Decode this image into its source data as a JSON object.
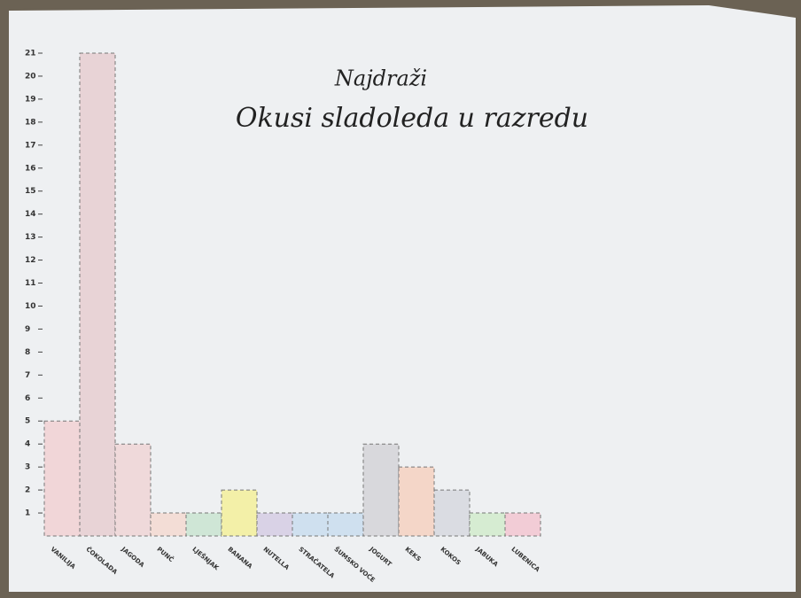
{
  "chart_data": {
    "type": "bar",
    "title": "Najdraži",
    "subtitle": "Okusi sladoleda u razredu",
    "categories": [
      "VANILIJA",
      "ČOKOLADA",
      "JAGODA",
      "PUNČ",
      "LJEŠNJAK",
      "BANANA",
      "NUTELLA",
      "STRAČATELA",
      "ŠUMSKO VOĆE",
      "JOGURT",
      "KEKS",
      "KOKOS",
      "JABUKA",
      "LUBENICA"
    ],
    "values": [
      5,
      21,
      4,
      1,
      1,
      2,
      1,
      1,
      1,
      4,
      3,
      2,
      1,
      1
    ],
    "colors": [
      "#f1d6d8",
      "#e8d3d6",
      "#efd9da",
      "#f3ddd6",
      "#cfe6d6",
      "#f3f0a8",
      "#d9d2e6",
      "#cfe0ef",
      "#cfe0ef",
      "#d8d8dc",
      "#f4d6c8",
      "#dadce2",
      "#d6ecd2",
      "#f2ccd6"
    ],
    "ylim": [
      0,
      21
    ],
    "yticks": [
      1,
      2,
      3,
      4,
      5,
      6,
      7,
      8,
      9,
      10,
      11,
      12,
      13,
      14,
      15,
      16,
      17,
      18,
      19,
      20,
      21
    ],
    "grid": false
  }
}
